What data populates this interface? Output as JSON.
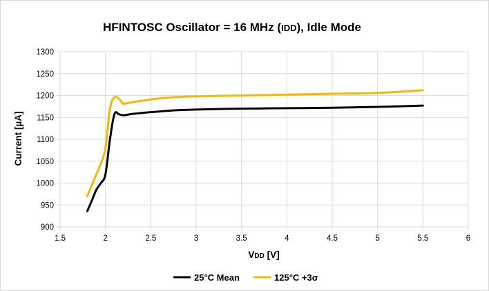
{
  "chart_data": {
    "type": "line",
    "title_main": "HFINTOSC Oscillator = 16 MHz (",
    "title_sub": "IDD",
    "title_end": "), Idle Mode",
    "xlabel_main": "V",
    "xlabel_sub": "DD",
    "xlabel_end": " [V]",
    "ylabel": "Current [µA]",
    "xlim": [
      1.5,
      6
    ],
    "ylim": [
      900,
      1300
    ],
    "x_ticks": [
      "1.5",
      "2",
      "2.5",
      "3",
      "3.5",
      "4",
      "4.5",
      "5",
      "5.5",
      "6"
    ],
    "y_ticks": [
      "900",
      "950",
      "1000",
      "1050",
      "1100",
      "1150",
      "1200",
      "1250",
      "1300"
    ],
    "grid": true,
    "legend_position": "bottom",
    "series": [
      {
        "name": "25°C Mean",
        "color": "#000000",
        "points": [
          [
            1.8,
            936
          ],
          [
            1.85,
            960
          ],
          [
            1.9,
            985
          ],
          [
            1.95,
            1000
          ],
          [
            2.0,
            1020
          ],
          [
            2.05,
            1100
          ],
          [
            2.1,
            1158
          ],
          [
            2.15,
            1157
          ],
          [
            2.2,
            1155
          ],
          [
            2.3,
            1158
          ],
          [
            2.5,
            1162
          ],
          [
            2.75,
            1166
          ],
          [
            3.0,
            1168
          ],
          [
            3.5,
            1170
          ],
          [
            4.0,
            1171
          ],
          [
            4.5,
            1172
          ],
          [
            5.0,
            1174
          ],
          [
            5.5,
            1177
          ]
        ]
      },
      {
        "name": "125°C +3σ",
        "color": "#f5b800",
        "points": [
          [
            1.8,
            970
          ],
          [
            1.85,
            995
          ],
          [
            1.9,
            1020
          ],
          [
            1.95,
            1045
          ],
          [
            2.0,
            1080
          ],
          [
            2.05,
            1170
          ],
          [
            2.1,
            1196
          ],
          [
            2.15,
            1192
          ],
          [
            2.2,
            1181
          ],
          [
            2.25,
            1183
          ],
          [
            2.5,
            1191
          ],
          [
            2.75,
            1196
          ],
          [
            3.0,
            1198
          ],
          [
            3.5,
            1200
          ],
          [
            4.0,
            1202
          ],
          [
            4.5,
            1204
          ],
          [
            5.0,
            1206
          ],
          [
            5.5,
            1212
          ]
        ]
      }
    ]
  }
}
